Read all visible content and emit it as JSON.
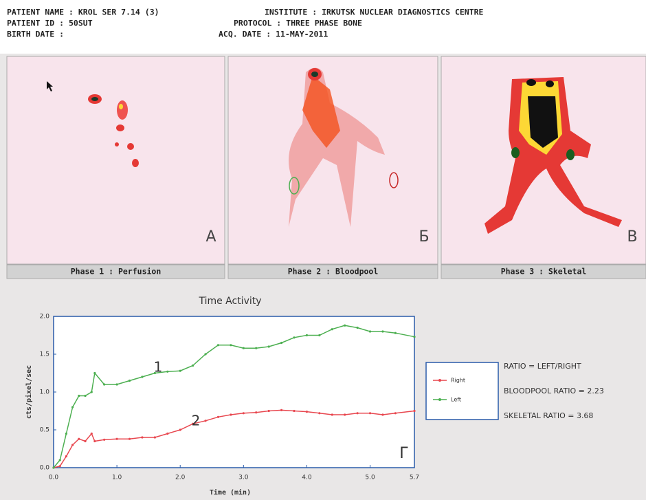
{
  "header": {
    "patient_name": "PATIENT NAME : KROL SER 7.14 (3)",
    "patient_id": "PATIENT ID   : 50SUT",
    "birth_date": "BIRTH DATE  :",
    "institute": "INSTITUTE : IRKUTSK NUCLEAR DIAGNOSTICS CENTRE",
    "protocol": "PROTOCOL  : THREE PHASE BONE",
    "acq_date": "ACQ. DATE : 11-MAY-2011"
  },
  "panels": [
    {
      "letter": "A",
      "caption": "Phase 1 : Perfusion"
    },
    {
      "letter": "Б",
      "caption": "Phase 2 : Bloodpool"
    },
    {
      "letter": "B",
      "caption": "Phase 3 : Skeletal"
    }
  ],
  "ratios": [
    "RATIO = LEFT/RIGHT",
    "BLOODPOOL RATIO = 2.23",
    "SKELETAL  RATIO = 3.68"
  ],
  "chart_data": {
    "type": "line",
    "title": "Time Activity",
    "x_label": "Time (min)",
    "y_label": "cts/pixel/sec",
    "x": [
      0,
      0.1,
      0.2,
      0.3,
      0.4,
      0.5,
      0.6,
      0.65,
      0.8,
      1.0,
      1.2,
      1.4,
      1.6,
      1.8,
      2.0,
      2.2,
      2.4,
      2.6,
      2.8,
      3.0,
      3.2,
      3.4,
      3.6,
      3.8,
      4.0,
      4.2,
      4.4,
      4.6,
      4.8,
      5.0,
      5.2,
      5.4,
      5.7
    ],
    "series": [
      {
        "name": "Right",
        "color": "#e8474f",
        "values": [
          0,
          0.02,
          0.15,
          0.3,
          0.38,
          0.35,
          0.45,
          0.35,
          0.37,
          0.38,
          0.38,
          0.4,
          0.4,
          0.45,
          0.5,
          0.58,
          0.62,
          0.67,
          0.7,
          0.72,
          0.73,
          0.75,
          0.76,
          0.75,
          0.74,
          0.72,
          0.7,
          0.7,
          0.72,
          0.72,
          0.7,
          0.72,
          0.75
        ]
      },
      {
        "name": "Left",
        "color": "#4caf50",
        "values": [
          0,
          0.1,
          0.45,
          0.8,
          0.95,
          0.95,
          1.0,
          1.25,
          1.1,
          1.1,
          1.15,
          1.2,
          1.25,
          1.27,
          1.28,
          1.35,
          1.5,
          1.62,
          1.62,
          1.58,
          1.58,
          1.6,
          1.65,
          1.72,
          1.75,
          1.75,
          1.83,
          1.88,
          1.85,
          1.8,
          1.8,
          1.78,
          1.73
        ]
      }
    ],
    "xlim": [
      0,
      5.7
    ],
    "ylim": [
      0,
      2
    ],
    "xticks": [
      {
        "value": 0,
        "label": "0.0"
      },
      {
        "value": 1,
        "label": "1.0"
      },
      {
        "value": 2,
        "label": "2.0"
      },
      {
        "value": 3,
        "label": "3.0"
      },
      {
        "value": 4,
        "label": "4.0"
      },
      {
        "value": 5,
        "label": "5.0"
      },
      5.7
    ],
    "yticks": [
      {
        "value": 0,
        "label": "0.0"
      },
      0.5,
      {
        "value": 1,
        "label": "1.0"
      },
      1.5,
      {
        "value": 2,
        "label": "2.0"
      }
    ],
    "annotations": [
      "1",
      "2",
      "Г"
    ]
  }
}
